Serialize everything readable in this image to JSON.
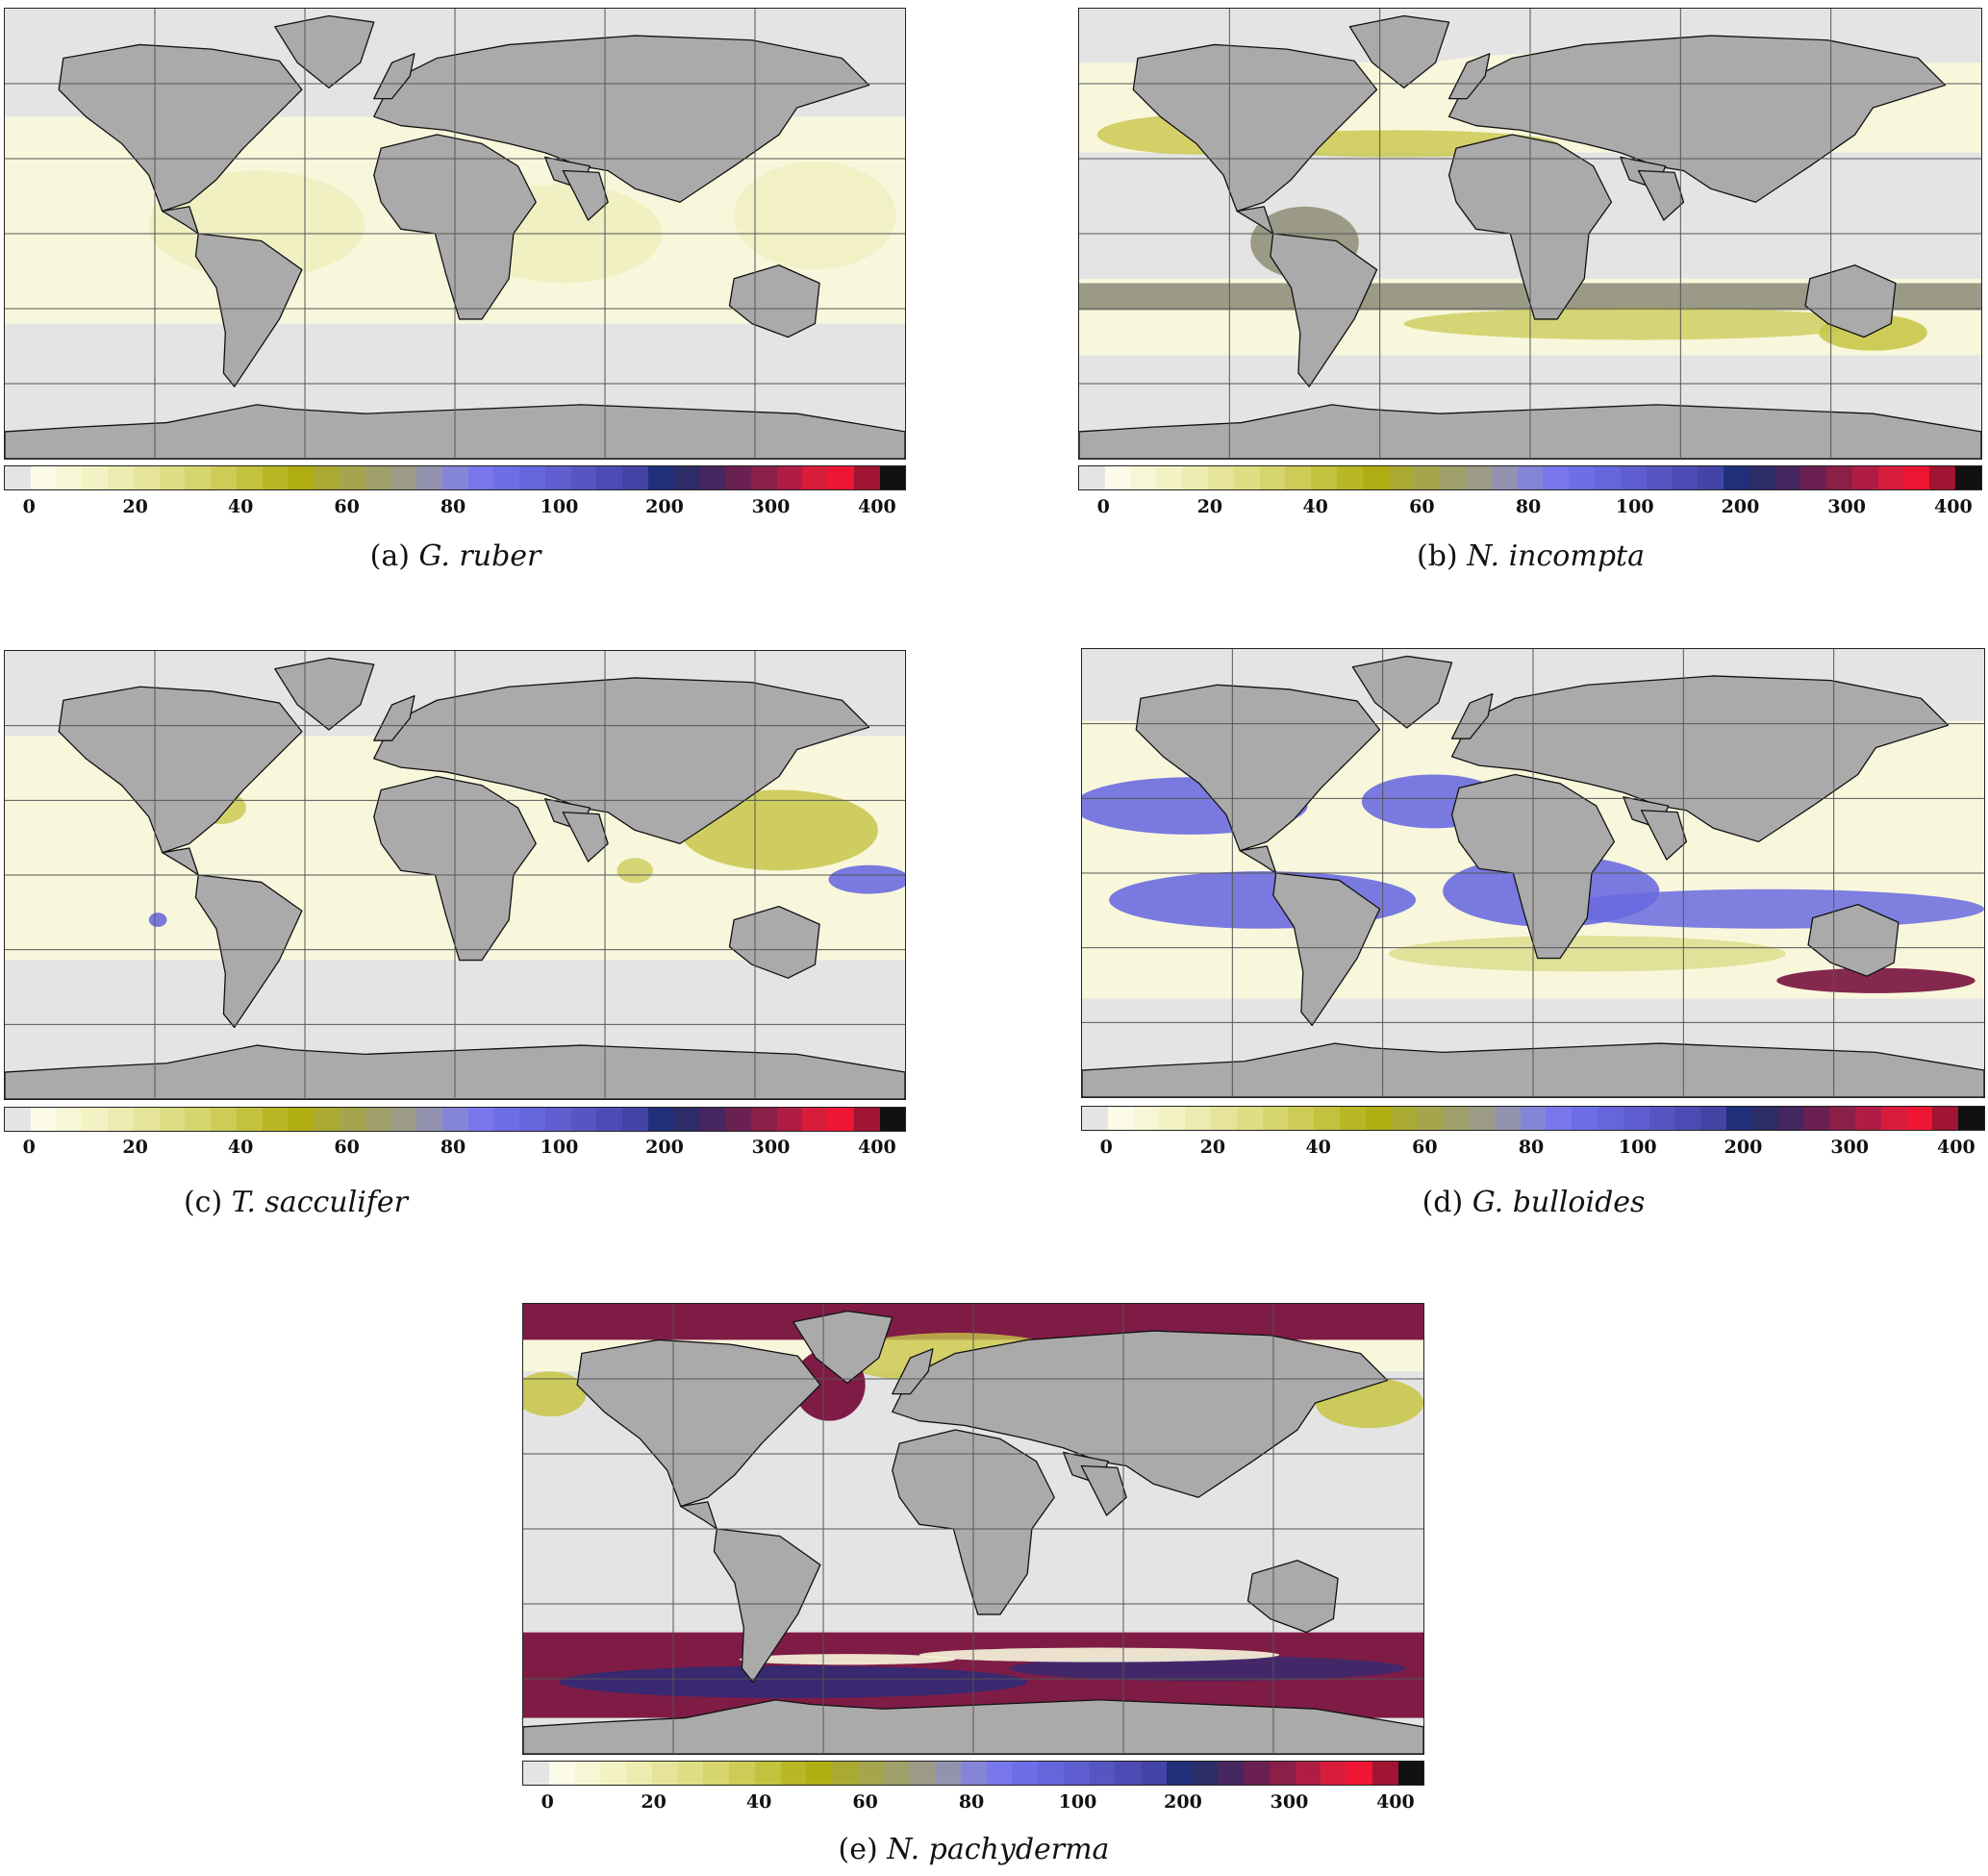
{
  "colorbar": {
    "tick_labels": [
      "0",
      "20",
      "40",
      "60",
      "80",
      "100",
      "200",
      "300",
      "400"
    ],
    "colors": [
      "#e4e4e4",
      "#fbfbe8",
      "#f7f7d6",
      "#f2f2c4",
      "#ecebb0",
      "#e6e49a",
      "#dede84",
      "#d6d56e",
      "#cdcc56",
      "#c3c23e",
      "#b9b724",
      "#b1ae14",
      "#aaaa33",
      "#a5a54e",
      "#a0a06a",
      "#9b9b86",
      "#9393b0",
      "#8585d8",
      "#7878ec",
      "#6e6ee8",
      "#6666dc",
      "#5e5ed0",
      "#5656c2",
      "#4c4cb4",
      "#4444a6",
      "#202f7a",
      "#2c2c66",
      "#462660",
      "#6a2050",
      "#8a1f48",
      "#b01d44",
      "#d81c3c",
      "#ee1632",
      "#a11432",
      "#111111"
    ]
  },
  "palette": {
    "missing": "#e4e4e4",
    "land": "#aaaaaa",
    "coast": "#111111",
    "grid": "#555555",
    "low": "#f8f7dc",
    "mid": "#c8c64a",
    "blue": "#6a6ae0",
    "maroon": "#7e1c46",
    "navy": "#2c2c78"
  },
  "panels": [
    {
      "id": "a",
      "letter": "(a)",
      "species": "G. ruber",
      "pattern": "tropical_low"
    },
    {
      "id": "b",
      "letter": "(b)",
      "species": "N. incompta",
      "pattern": "temperate_bands"
    },
    {
      "id": "c",
      "letter": "(c)",
      "species": "T. sacculifer",
      "pattern": "tropical_mid"
    },
    {
      "id": "d",
      "letter": "(d)",
      "species": "G. bulloides",
      "pattern": "upwelling_blue"
    },
    {
      "id": "e",
      "letter": "(e)",
      "species": "N. pachyderma",
      "pattern": "polar_high"
    }
  ]
}
